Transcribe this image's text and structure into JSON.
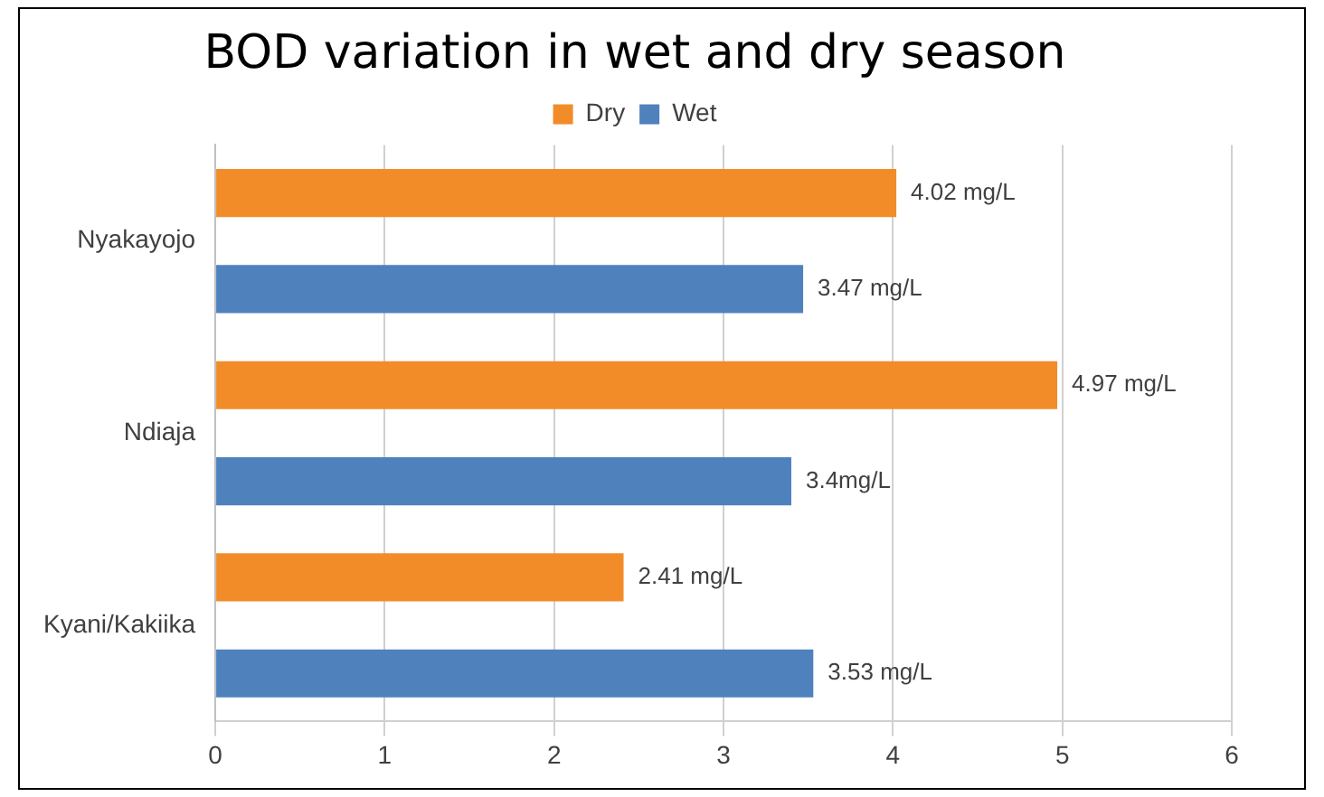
{
  "chart_data": {
    "type": "bar",
    "orientation": "horizontal",
    "title": "BOD variation in wet and dry season",
    "categories": [
      "Nyakayojo",
      "Ndiaja",
      "Kyani/Kakiika"
    ],
    "series": [
      {
        "name": "Dry",
        "color": "#f28c28",
        "values": [
          4.02,
          4.97,
          2.41
        ],
        "value_labels": [
          "4.02 mg/L",
          "4.97 mg/L",
          "2.41 mg/L"
        ]
      },
      {
        "name": "Wet",
        "color": "#4f81bd",
        "values": [
          3.47,
          3.4,
          3.53
        ],
        "value_labels": [
          "3.47 mg/L",
          "3.4mg/L",
          "3.53 mg/L"
        ]
      }
    ],
    "xlim": [
      0,
      6
    ],
    "xticks": [
      0,
      1,
      2,
      3,
      4,
      5,
      6
    ],
    "grid": "x",
    "legend": "top"
  }
}
